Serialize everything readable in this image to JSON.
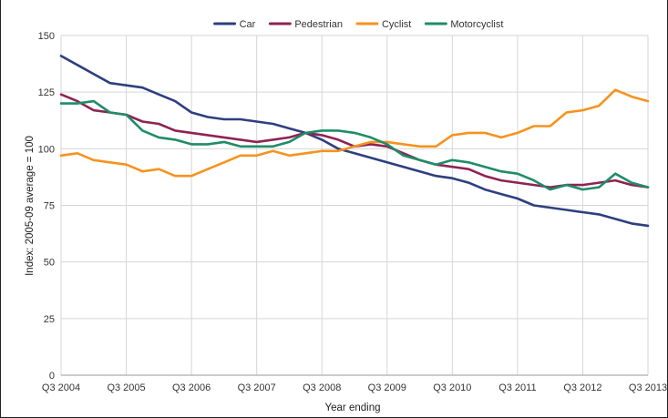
{
  "chart_data": {
    "type": "line",
    "xlabel": "Year ending",
    "ylabel": "Index: 2005-09 average = 100",
    "ylim": [
      0,
      150
    ],
    "yticks": [
      0,
      25,
      50,
      75,
      100,
      125,
      150
    ],
    "xtick_labels": [
      "Q3 2004",
      "Q3 2005",
      "Q3 2006",
      "Q3 2007",
      "Q3 2008",
      "Q3 2009",
      "Q3 2010",
      "Q3 2011",
      "Q3 2012",
      "Q3 2013"
    ],
    "grid": true,
    "legend_position": "top",
    "categories": [
      "Q3 2004",
      "Q4 2004",
      "Q1 2005",
      "Q2 2005",
      "Q3 2005",
      "Q4 2005",
      "Q1 2006",
      "Q2 2006",
      "Q3 2006",
      "Q4 2006",
      "Q1 2007",
      "Q2 2007",
      "Q3 2007",
      "Q4 2007",
      "Q1 2008",
      "Q2 2008",
      "Q3 2008",
      "Q4 2008",
      "Q1 2009",
      "Q2 2009",
      "Q3 2009",
      "Q4 2009",
      "Q1 2010",
      "Q2 2010",
      "Q3 2010",
      "Q4 2010",
      "Q1 2011",
      "Q2 2011",
      "Q3 2011",
      "Q4 2011",
      "Q1 2012",
      "Q2 2012",
      "Q3 2012",
      "Q4 2012",
      "Q1 2013",
      "Q2 2013",
      "Q3 2013"
    ],
    "series": [
      {
        "name": "Car",
        "color": "#2e3f80",
        "values": [
          141,
          137,
          133,
          129,
          128,
          127,
          124,
          121,
          116,
          114,
          113,
          113,
          112,
          111,
          109,
          107,
          104,
          100,
          98,
          96,
          94,
          92,
          90,
          88,
          87,
          85,
          82,
          80,
          78,
          75,
          74,
          73,
          72,
          71,
          69,
          67,
          66
        ]
      },
      {
        "name": "Pedestrian",
        "color": "#8e2354",
        "values": [
          124,
          121,
          117,
          116,
          115,
          112,
          111,
          108,
          107,
          106,
          105,
          104,
          103,
          104,
          105,
          107,
          106,
          104,
          101,
          102,
          101,
          98,
          95,
          93,
          92,
          91,
          88,
          86,
          85,
          84,
          83,
          84,
          84,
          85,
          86,
          84,
          83
        ]
      },
      {
        "name": "Cyclist",
        "color": "#f5931e",
        "values": [
          97,
          98,
          95,
          94,
          93,
          90,
          91,
          88,
          88,
          91,
          94,
          97,
          97,
          99,
          97,
          98,
          99,
          99,
          101,
          103,
          103,
          102,
          101,
          101,
          106,
          107,
          107,
          105,
          107,
          110,
          110,
          116,
          117,
          119,
          126,
          123,
          121
        ]
      },
      {
        "name": "Motorcyclist",
        "color": "#1f8c68",
        "values": [
          120,
          120,
          121,
          116,
          115,
          108,
          105,
          104,
          102,
          102,
          103,
          101,
          101,
          101,
          103,
          107,
          108,
          108,
          107,
          105,
          102,
          97,
          95,
          93,
          95,
          94,
          92,
          90,
          89,
          86,
          82,
          84,
          82,
          83,
          89,
          85,
          83
        ]
      }
    ]
  }
}
